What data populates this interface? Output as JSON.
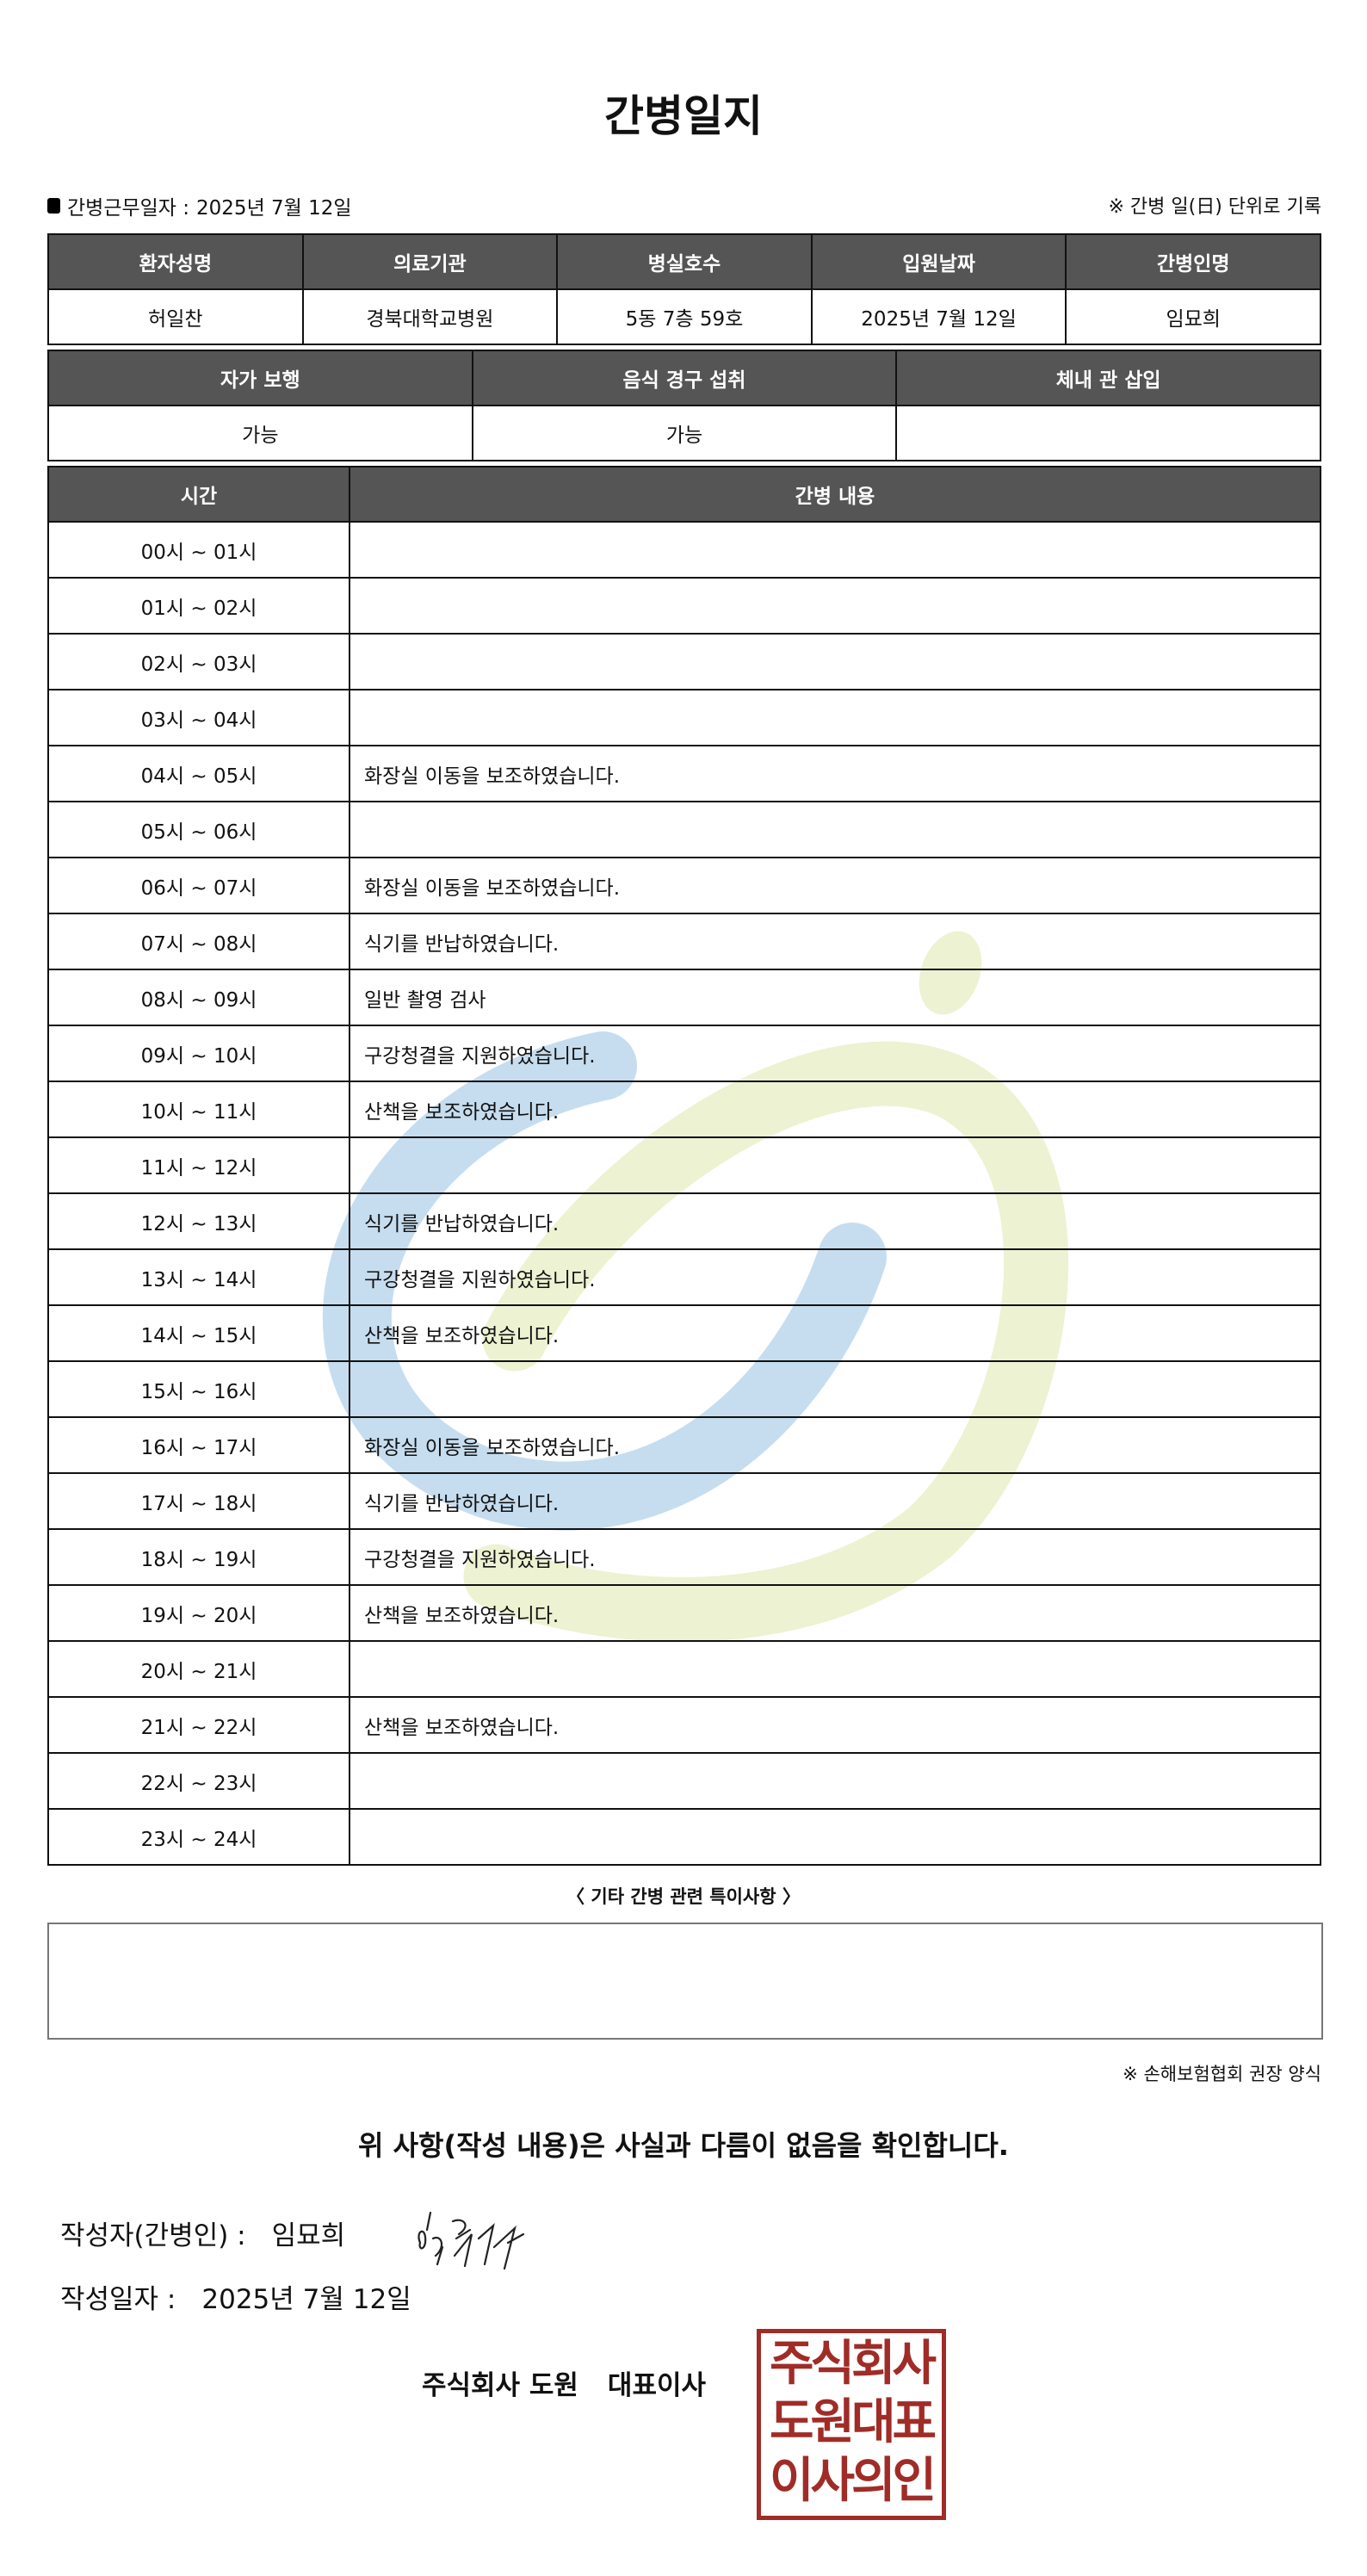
{
  "title": "간병일지",
  "info": {
    "work_date_label": "간병근무일자  :",
    "work_date": "2025년 7월 12일",
    "note": "※ 간병 일(日) 단위로 기록"
  },
  "patient_table": {
    "headers": [
      "환자성명",
      "의료기관",
      "병실호수",
      "입원날짜",
      "간병인명"
    ],
    "values": [
      "허일찬",
      "경북대학교병원",
      "5동 7층 59호",
      "2025년 7월 12일",
      "임묘희"
    ]
  },
  "status_table": {
    "headers": [
      "자가 보행",
      "음식 경구 섭취",
      "체내 관 삽입"
    ],
    "values": [
      "가능",
      "가능",
      ""
    ]
  },
  "log_table": {
    "headers": [
      "시간",
      "간병 내용"
    ],
    "rows": [
      {
        "time": "00시 ~ 01시",
        "content": ""
      },
      {
        "time": "01시 ~ 02시",
        "content": ""
      },
      {
        "time": "02시 ~ 03시",
        "content": ""
      },
      {
        "time": "03시 ~ 04시",
        "content": ""
      },
      {
        "time": "04시 ~ 05시",
        "content": "화장실 이동을 보조하였습니다."
      },
      {
        "time": "05시 ~ 06시",
        "content": ""
      },
      {
        "time": "06시 ~ 07시",
        "content": "화장실 이동을 보조하였습니다."
      },
      {
        "time": "07시 ~ 08시",
        "content": "식기를 반납하였습니다."
      },
      {
        "time": "08시 ~ 09시",
        "content": "일반 촬영 검사"
      },
      {
        "time": "09시 ~ 10시",
        "content": "구강청결을 지원하였습니다."
      },
      {
        "time": "10시 ~ 11시",
        "content": "산책을 보조하였습니다."
      },
      {
        "time": "11시 ~ 12시",
        "content": ""
      },
      {
        "time": "12시 ~ 13시",
        "content": "식기를 반납하였습니다."
      },
      {
        "time": "13시 ~ 14시",
        "content": "구강청결을 지원하였습니다."
      },
      {
        "time": "14시 ~ 15시",
        "content": "산책을 보조하였습니다."
      },
      {
        "time": "15시 ~ 16시",
        "content": ""
      },
      {
        "time": "16시 ~ 17시",
        "content": "화장실 이동을 보조하였습니다."
      },
      {
        "time": "17시 ~ 18시",
        "content": "식기를 반납하였습니다."
      },
      {
        "time": "18시 ~ 19시",
        "content": "구강청결을 지원하였습니다."
      },
      {
        "time": "19시 ~ 20시",
        "content": "산책을 보조하였습니다."
      },
      {
        "time": "20시 ~ 21시",
        "content": ""
      },
      {
        "time": "21시 ~ 22시",
        "content": "산책을 보조하였습니다."
      },
      {
        "time": "22시 ~ 23시",
        "content": ""
      },
      {
        "time": "23시 ~ 24시",
        "content": ""
      }
    ]
  },
  "remarks": {
    "label": "〈 기타 간병 관련 특이사항 〉",
    "value": ""
  },
  "source_note": "※ 손해보험협회 권장 양식",
  "confirmation": "위 사항(작성 내용)은 사실과 다름이 없음을 확인합니다.",
  "author": {
    "label": "작성자(간병인) :",
    "name": "임묘희"
  },
  "written_date": {
    "label": "작성일자 :",
    "value": "2025년 7월 12일"
  },
  "company": {
    "name": "주식회사 도원",
    "title": "대표이사"
  },
  "seal": {
    "lines": [
      "주식회사",
      "도원대표",
      "이사의인"
    ],
    "color": "#a02c27"
  },
  "watermark_colors": {
    "blue": "#c6ddef",
    "yellow": "#edf2d2"
  }
}
